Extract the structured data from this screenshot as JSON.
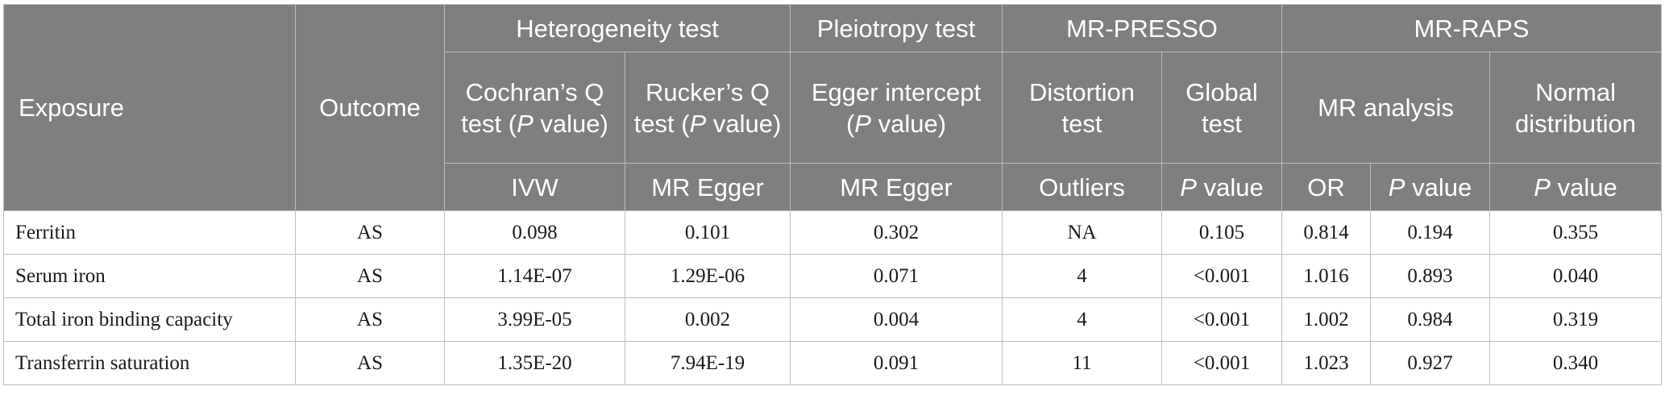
{
  "header": {
    "exposure": "Exposure",
    "outcome": "Outcome",
    "groups": {
      "heterogeneity": "Heterogeneity test",
      "pleiotropy": "Pleiotropy test",
      "mr_presso": "MR-PRESSO",
      "mr_raps": "MR-RAPS"
    },
    "sub": {
      "cochran_pre": "Cochran’s Q test (",
      "cochran_p": "P",
      "cochran_post": " value)",
      "rucker_pre": "Rucker’s Q test (",
      "rucker_p": "P",
      "rucker_post": " value)",
      "egger_pre": "Egger intercept (",
      "egger_p": "P",
      "egger_post": " value)",
      "distortion": "Distortion test",
      "global": "Global test",
      "mr_analysis": "MR analysis",
      "normal": "Normal distribution"
    },
    "methods": {
      "ivw": "IVW",
      "mr_egger_1": "MR Egger",
      "mr_egger_2": "MR Egger",
      "outliers": "Outliers",
      "p_global_p": "P",
      "p_global_rest": " value",
      "or": "OR",
      "p_mr_p": "P",
      "p_mr_rest": " value",
      "p_norm_p": "P",
      "p_norm_rest": " value"
    }
  },
  "rows": [
    {
      "exposure": "Ferritin",
      "outcome": "AS",
      "ivw": "0.098",
      "rucker": "0.101",
      "egger": "0.302",
      "outliers": "NA",
      "global_p": "0.105",
      "or": "0.814",
      "mr_p": "0.194",
      "normal_p": "0.355"
    },
    {
      "exposure": "Serum iron",
      "outcome": "AS",
      "ivw": "1.14E-07",
      "rucker": "1.29E-06",
      "egger": "0.071",
      "outliers": "4",
      "global_p": "<0.001",
      "or": "1.016",
      "mr_p": "0.893",
      "normal_p": "0.040"
    },
    {
      "exposure": "Total iron binding capacity",
      "outcome": "AS",
      "ivw": "3.99E-05",
      "rucker": "0.002",
      "egger": "0.004",
      "outliers": "4",
      "global_p": "<0.001",
      "or": "1.002",
      "mr_p": "0.984",
      "normal_p": "0.319"
    },
    {
      "exposure": "Transferrin saturation",
      "outcome": "AS",
      "ivw": "1.35E-20",
      "rucker": "7.94E-19",
      "egger": "0.091",
      "outliers": "11",
      "global_p": "<0.001",
      "or": "1.023",
      "mr_p": "0.927",
      "normal_p": "0.340"
    }
  ]
}
